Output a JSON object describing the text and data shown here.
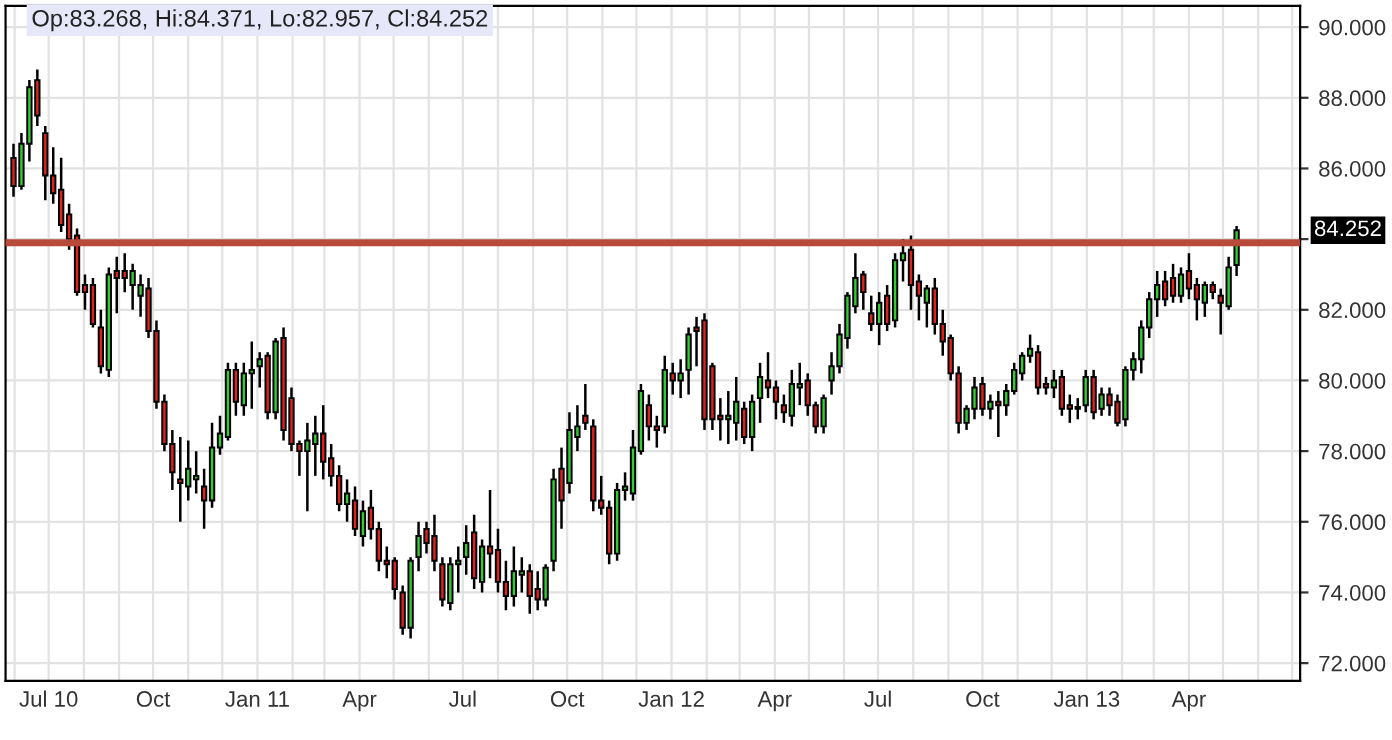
{
  "chart_data": {
    "type": "candlestick",
    "x": [
      "2010-05-31",
      "2010-06-07",
      "2010-06-14",
      "2010-06-21",
      "2010-06-28",
      "2010-07-05",
      "2010-07-12",
      "2010-07-19",
      "2010-07-26",
      "2010-08-02",
      "2010-08-09",
      "2010-08-16",
      "2010-08-23",
      "2010-08-30",
      "2010-09-06",
      "2010-09-13",
      "2010-09-20",
      "2010-09-27",
      "2010-10-04",
      "2010-10-11",
      "2010-10-18",
      "2010-10-25",
      "2010-11-01",
      "2010-11-08",
      "2010-11-15",
      "2010-11-22",
      "2010-11-29",
      "2010-12-06",
      "2010-12-13",
      "2010-12-20",
      "2010-12-27",
      "2011-01-03",
      "2011-01-10",
      "2011-01-17",
      "2011-01-24",
      "2011-01-31",
      "2011-02-07",
      "2011-02-14",
      "2011-02-21",
      "2011-02-28",
      "2011-03-07",
      "2011-03-14",
      "2011-03-21",
      "2011-03-28",
      "2011-04-04",
      "2011-04-11",
      "2011-04-18",
      "2011-04-25",
      "2011-05-02",
      "2011-05-09",
      "2011-05-16",
      "2011-05-23",
      "2011-05-30",
      "2011-06-06",
      "2011-06-13",
      "2011-06-20",
      "2011-06-27",
      "2011-07-04",
      "2011-07-11",
      "2011-07-18",
      "2011-07-25",
      "2011-08-01",
      "2011-08-08",
      "2011-08-15",
      "2011-08-22",
      "2011-08-29",
      "2011-09-05",
      "2011-09-12",
      "2011-09-19",
      "2011-09-26",
      "2011-10-03",
      "2011-10-10",
      "2011-10-17",
      "2011-10-24",
      "2011-10-31",
      "2011-11-07",
      "2011-11-14",
      "2011-11-21",
      "2011-11-28",
      "2011-12-05",
      "2011-12-12",
      "2011-12-19",
      "2011-12-26",
      "2012-01-02",
      "2012-01-09",
      "2012-01-16",
      "2012-01-23",
      "2012-01-30",
      "2012-02-06",
      "2012-02-13",
      "2012-02-20",
      "2012-02-27",
      "2012-03-05",
      "2012-03-12",
      "2012-03-19",
      "2012-03-26",
      "2012-04-02",
      "2012-04-09",
      "2012-04-16",
      "2012-04-23",
      "2012-04-30",
      "2012-05-07",
      "2012-05-14",
      "2012-05-21",
      "2012-05-28",
      "2012-06-04",
      "2012-06-11",
      "2012-06-18",
      "2012-06-25",
      "2012-07-02",
      "2012-07-09",
      "2012-07-16",
      "2012-07-23",
      "2012-07-30",
      "2012-08-06",
      "2012-08-13",
      "2012-08-20",
      "2012-08-27",
      "2012-09-03",
      "2012-09-10",
      "2012-09-17",
      "2012-09-24",
      "2012-10-01",
      "2012-10-08",
      "2012-10-15",
      "2012-10-22",
      "2012-10-29",
      "2012-11-05",
      "2012-11-12",
      "2012-11-19",
      "2012-11-26",
      "2012-12-03",
      "2012-12-10",
      "2012-12-17",
      "2012-12-24",
      "2012-12-31",
      "2013-01-07",
      "2013-01-14",
      "2013-01-21",
      "2013-01-28",
      "2013-02-04",
      "2013-02-11",
      "2013-02-18",
      "2013-02-25",
      "2013-03-04",
      "2013-03-11",
      "2013-03-18",
      "2013-03-25",
      "2013-04-01",
      "2013-04-08",
      "2013-04-15",
      "2013-04-22",
      "2013-04-29",
      "2013-05-06",
      "2013-05-13"
    ],
    "ohlc": [
      [
        86.3,
        86.7,
        85.2,
        85.5
      ],
      [
        85.5,
        87.0,
        85.4,
        86.7
      ],
      [
        86.7,
        88.5,
        86.2,
        88.3
      ],
      [
        88.5,
        88.8,
        87.2,
        87.5
      ],
      [
        87.0,
        87.2,
        85.1,
        85.8
      ],
      [
        85.8,
        86.6,
        85.0,
        85.3
      ],
      [
        85.4,
        86.3,
        84.2,
        84.4
      ],
      [
        84.7,
        85.0,
        83.7,
        84.0
      ],
      [
        84.1,
        84.3,
        82.4,
        82.5
      ],
      [
        82.7,
        83.0,
        82.0,
        82.5
      ],
      [
        82.7,
        82.9,
        81.5,
        81.6
      ],
      [
        81.5,
        82.0,
        80.2,
        80.4
      ],
      [
        80.3,
        83.2,
        80.1,
        83.0
      ],
      [
        83.1,
        83.5,
        81.9,
        82.9
      ],
      [
        83.1,
        83.6,
        82.5,
        82.9
      ],
      [
        82.7,
        83.3,
        82.0,
        83.1
      ],
      [
        82.4,
        83.0,
        81.8,
        82.7
      ],
      [
        82.6,
        82.9,
        81.2,
        81.4
      ],
      [
        81.4,
        81.7,
        79.2,
        79.4
      ],
      [
        79.4,
        79.6,
        78.0,
        78.2
      ],
      [
        78.2,
        78.6,
        76.9,
        77.4
      ],
      [
        77.2,
        78.4,
        76.0,
        77.1
      ],
      [
        77.0,
        78.3,
        76.6,
        77.5
      ],
      [
        77.2,
        78.0,
        76.8,
        77.3
      ],
      [
        77.0,
        77.5,
        75.8,
        76.6
      ],
      [
        76.6,
        78.8,
        76.4,
        78.1
      ],
      [
        78.1,
        79.0,
        77.9,
        78.5
      ],
      [
        78.4,
        80.5,
        78.3,
        80.3
      ],
      [
        80.3,
        80.5,
        79.0,
        79.4
      ],
      [
        79.3,
        80.5,
        79.0,
        80.2
      ],
      [
        80.2,
        81.1,
        79.2,
        80.3
      ],
      [
        80.4,
        80.8,
        79.8,
        80.6
      ],
      [
        80.7,
        80.8,
        78.9,
        79.1
      ],
      [
        79.1,
        81.2,
        78.9,
        81.1
      ],
      [
        81.2,
        81.5,
        78.3,
        78.6
      ],
      [
        79.5,
        79.8,
        78.0,
        78.2
      ],
      [
        78.2,
        78.3,
        77.3,
        78.0
      ],
      [
        78.0,
        78.8,
        76.3,
        78.3
      ],
      [
        78.2,
        79.0,
        77.3,
        78.5
      ],
      [
        78.5,
        79.3,
        77.2,
        77.7
      ],
      [
        77.8,
        78.2,
        77.0,
        77.3
      ],
      [
        77.3,
        77.6,
        76.3,
        76.5
      ],
      [
        76.5,
        77.2,
        76.0,
        76.8
      ],
      [
        76.6,
        77.0,
        75.6,
        75.8
      ],
      [
        75.6,
        76.6,
        75.3,
        76.3
      ],
      [
        76.4,
        76.9,
        75.5,
        75.8
      ],
      [
        75.8,
        76.0,
        74.6,
        74.9
      ],
      [
        74.9,
        75.3,
        74.4,
        74.8
      ],
      [
        74.9,
        75.0,
        73.8,
        74.1
      ],
      [
        74.0,
        74.2,
        72.8,
        73.0
      ],
      [
        73.0,
        75.0,
        72.7,
        74.9
      ],
      [
        75.0,
        76.0,
        74.6,
        75.6
      ],
      [
        75.8,
        76.0,
        75.1,
        75.4
      ],
      [
        75.6,
        76.2,
        74.6,
        74.9
      ],
      [
        74.8,
        75.0,
        73.6,
        73.8
      ],
      [
        73.7,
        75.0,
        73.5,
        74.8
      ],
      [
        74.8,
        75.3,
        74.0,
        74.9
      ],
      [
        75.0,
        75.9,
        74.5,
        75.4
      ],
      [
        75.7,
        76.2,
        74.1,
        74.4
      ],
      [
        74.3,
        75.5,
        74.0,
        75.3
      ],
      [
        75.3,
        76.9,
        74.4,
        75.1
      ],
      [
        75.2,
        75.8,
        74.0,
        74.3
      ],
      [
        74.3,
        74.9,
        73.5,
        73.9
      ],
      [
        73.9,
        75.3,
        73.6,
        74.6
      ],
      [
        74.5,
        75.0,
        74.0,
        74.6
      ],
      [
        74.6,
        74.8,
        73.4,
        73.9
      ],
      [
        74.1,
        74.6,
        73.5,
        73.8
      ],
      [
        73.8,
        74.8,
        73.6,
        74.7
      ],
      [
        74.9,
        77.5,
        74.6,
        77.2
      ],
      [
        77.5,
        78.1,
        75.8,
        76.6
      ],
      [
        77.1,
        79.1,
        76.8,
        78.6
      ],
      [
        78.4,
        79.3,
        78.0,
        78.7
      ],
      [
        79.0,
        79.9,
        78.6,
        78.8
      ],
      [
        78.7,
        78.9,
        76.3,
        76.6
      ],
      [
        76.6,
        77.3,
        76.2,
        76.4
      ],
      [
        76.4,
        76.6,
        74.8,
        75.1
      ],
      [
        75.1,
        77.1,
        74.9,
        76.9
      ],
      [
        76.9,
        77.4,
        76.6,
        77.0
      ],
      [
        76.8,
        78.6,
        76.6,
        78.1
      ],
      [
        78.0,
        79.9,
        77.9,
        79.7
      ],
      [
        79.3,
        79.6,
        78.3,
        78.7
      ],
      [
        78.7,
        79.0,
        78.1,
        78.6
      ],
      [
        78.7,
        80.7,
        78.5,
        80.3
      ],
      [
        80.2,
        80.5,
        79.6,
        80.0
      ],
      [
        80.0,
        80.6,
        79.5,
        80.2
      ],
      [
        80.3,
        81.5,
        79.6,
        81.3
      ],
      [
        81.5,
        81.8,
        80.4,
        81.4
      ],
      [
        81.7,
        81.9,
        78.6,
        78.9
      ],
      [
        80.4,
        80.5,
        78.6,
        78.9
      ],
      [
        79.0,
        79.5,
        78.3,
        78.9
      ],
      [
        78.9,
        79.7,
        78.2,
        79.0
      ],
      [
        78.8,
        80.1,
        78.3,
        79.4
      ],
      [
        79.2,
        79.4,
        78.2,
        78.4
      ],
      [
        78.4,
        79.6,
        78.0,
        79.4
      ],
      [
        79.5,
        80.5,
        78.8,
        80.1
      ],
      [
        80.0,
        80.8,
        79.5,
        79.8
      ],
      [
        79.8,
        80.0,
        78.9,
        79.4
      ],
      [
        79.3,
        79.6,
        78.8,
        79.1
      ],
      [
        79.0,
        80.3,
        78.7,
        79.9
      ],
      [
        79.8,
        80.5,
        79.3,
        79.9
      ],
      [
        80.0,
        80.2,
        79.0,
        79.3
      ],
      [
        79.3,
        79.4,
        78.5,
        78.7
      ],
      [
        78.7,
        79.6,
        78.5,
        79.5
      ],
      [
        80.0,
        80.8,
        79.6,
        80.4
      ],
      [
        80.4,
        81.6,
        80.2,
        81.3
      ],
      [
        81.2,
        82.5,
        80.9,
        82.4
      ],
      [
        82.1,
        83.6,
        81.9,
        82.9
      ],
      [
        83.0,
        83.1,
        82.0,
        82.5
      ],
      [
        81.9,
        82.4,
        81.4,
        81.6
      ],
      [
        81.6,
        82.5,
        81.0,
        82.2
      ],
      [
        82.4,
        82.7,
        81.4,
        81.6
      ],
      [
        81.7,
        83.6,
        81.5,
        83.4
      ],
      [
        83.4,
        84.0,
        82.8,
        83.6
      ],
      [
        83.7,
        84.1,
        82.0,
        82.7
      ],
      [
        82.8,
        83.0,
        81.7,
        82.4
      ],
      [
        82.2,
        82.7,
        81.5,
        82.6
      ],
      [
        82.6,
        82.9,
        81.3,
        81.6
      ],
      [
        81.6,
        82.0,
        80.7,
        81.1
      ],
      [
        81.2,
        81.3,
        80.0,
        80.2
      ],
      [
        80.2,
        80.4,
        78.5,
        78.8
      ],
      [
        78.8,
        79.3,
        78.6,
        79.2
      ],
      [
        79.2,
        80.1,
        78.9,
        79.8
      ],
      [
        79.9,
        80.1,
        79.0,
        79.2
      ],
      [
        79.2,
        79.6,
        78.9,
        79.4
      ],
      [
        79.4,
        79.7,
        78.4,
        79.3
      ],
      [
        79.3,
        79.9,
        79.0,
        79.7
      ],
      [
        79.7,
        80.5,
        79.6,
        80.3
      ],
      [
        80.2,
        80.8,
        80.0,
        80.7
      ],
      [
        80.7,
        81.3,
        80.5,
        80.9
      ],
      [
        80.8,
        81.0,
        79.6,
        79.8
      ],
      [
        79.9,
        80.1,
        79.6,
        79.8
      ],
      [
        79.8,
        80.3,
        79.5,
        80.0
      ],
      [
        80.1,
        80.3,
        79.0,
        79.2
      ],
      [
        79.3,
        79.6,
        78.8,
        79.2
      ],
      [
        79.25,
        79.5,
        78.9,
        79.2
      ],
      [
        79.3,
        80.3,
        79.1,
        80.1
      ],
      [
        80.1,
        80.3,
        78.9,
        79.1
      ],
      [
        79.2,
        79.8,
        79.0,
        79.6
      ],
      [
        79.6,
        79.8,
        79.0,
        79.3
      ],
      [
        79.4,
        79.6,
        78.7,
        78.8
      ],
      [
        78.9,
        80.4,
        78.7,
        80.3
      ],
      [
        80.3,
        80.8,
        80.0,
        80.6
      ],
      [
        80.6,
        81.7,
        80.2,
        81.5
      ],
      [
        81.5,
        82.5,
        81.2,
        82.3
      ],
      [
        82.3,
        83.1,
        81.8,
        82.7
      ],
      [
        82.8,
        83.1,
        82.1,
        82.3
      ],
      [
        82.9,
        83.3,
        82.2,
        82.4
      ],
      [
        82.4,
        83.2,
        82.2,
        83.0
      ],
      [
        83.1,
        83.6,
        82.3,
        82.6
      ],
      [
        82.7,
        82.9,
        81.7,
        82.3
      ],
      [
        82.2,
        82.8,
        81.8,
        82.7
      ],
      [
        82.7,
        82.8,
        82.3,
        82.5
      ],
      [
        82.4,
        82.6,
        81.3,
        82.2
      ],
      [
        82.1,
        83.5,
        82.0,
        83.2
      ],
      [
        83.268,
        84.371,
        82.957,
        84.252
      ]
    ],
    "xlim": [
      "2010-05-24",
      "2013-07-08"
    ],
    "xticks": [
      {
        "value": "2010-06-01",
        "label": null
      },
      {
        "value": "2010-07-01",
        "label": "Jul 10"
      },
      {
        "value": "2010-08-01",
        "label": null
      },
      {
        "value": "2010-09-01",
        "label": null
      },
      {
        "value": "2010-10-01",
        "label": "Oct"
      },
      {
        "value": "2010-11-01",
        "label": null
      },
      {
        "value": "2010-12-01",
        "label": null
      },
      {
        "value": "2011-01-01",
        "label": "Jan 11"
      },
      {
        "value": "2011-02-01",
        "label": null
      },
      {
        "value": "2011-03-01",
        "label": null
      },
      {
        "value": "2011-04-01",
        "label": "Apr"
      },
      {
        "value": "2011-05-01",
        "label": null
      },
      {
        "value": "2011-06-01",
        "label": null
      },
      {
        "value": "2011-07-01",
        "label": "Jul"
      },
      {
        "value": "2011-08-01",
        "label": null
      },
      {
        "value": "2011-09-01",
        "label": null
      },
      {
        "value": "2011-10-01",
        "label": "Oct"
      },
      {
        "value": "2011-11-01",
        "label": null
      },
      {
        "value": "2011-12-01",
        "label": null
      },
      {
        "value": "2012-01-01",
        "label": "Jan 12"
      },
      {
        "value": "2012-02-01",
        "label": null
      },
      {
        "value": "2012-03-01",
        "label": null
      },
      {
        "value": "2012-04-01",
        "label": "Apr"
      },
      {
        "value": "2012-05-01",
        "label": null
      },
      {
        "value": "2012-06-01",
        "label": null
      },
      {
        "value": "2012-07-01",
        "label": "Jul"
      },
      {
        "value": "2012-08-01",
        "label": null
      },
      {
        "value": "2012-09-01",
        "label": null
      },
      {
        "value": "2012-10-01",
        "label": "Oct"
      },
      {
        "value": "2012-11-01",
        "label": null
      },
      {
        "value": "2012-12-01",
        "label": null
      },
      {
        "value": "2013-01-01",
        "label": "Jan 13"
      },
      {
        "value": "2013-02-01",
        "label": null
      },
      {
        "value": "2013-03-01",
        "label": null
      },
      {
        "value": "2013-04-01",
        "label": "Apr"
      },
      {
        "value": "2013-05-01",
        "label": null
      },
      {
        "value": "2013-06-01",
        "label": null
      },
      {
        "value": "2013-07-01",
        "label": null
      }
    ],
    "ylim": [
      71.5,
      90.6
    ],
    "yticks": [
      {
        "value": 72,
        "label": "72.000"
      },
      {
        "value": 74,
        "label": "74.000"
      },
      {
        "value": 76,
        "label": "76.000"
      },
      {
        "value": 78,
        "label": "78.000"
      },
      {
        "value": 80,
        "label": "80.000"
      },
      {
        "value": 82,
        "label": "82.000"
      },
      {
        "value": 84,
        "label": null
      },
      {
        "value": 86,
        "label": "86.000"
      },
      {
        "value": 88,
        "label": "88.000"
      },
      {
        "value": 90,
        "label": "90.000"
      }
    ],
    "grid": true,
    "ref_lines": [
      {
        "axis": "y",
        "value": 83.9,
        "color": "#b84a3a"
      }
    ],
    "annotations": [
      "Op:83.268, Hi:84.371, Lo:82.957, Cl:84.252",
      "84.252"
    ]
  }
}
